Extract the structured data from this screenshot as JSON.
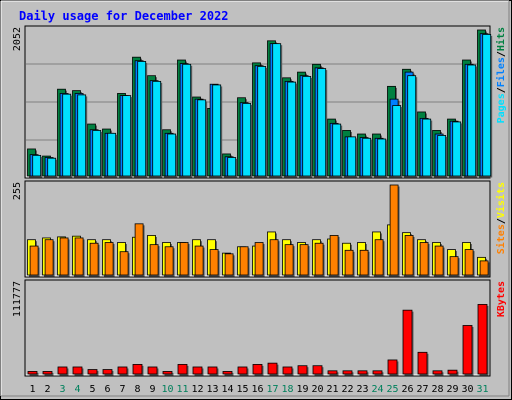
{
  "colors": {
    "background": "#c0c0c0",
    "hits": "#008040",
    "files": "#0080ff",
    "pages": "#00e0ff",
    "visits": "#ffff00",
    "sites": "#ff8000",
    "kbytes": "#ff0000",
    "title": "#0000ff",
    "weekend_day": "#00805c",
    "weekday": "#000000"
  },
  "chart_data": {
    "type": "bar",
    "title": "Daily usage for December 2022",
    "categories": [
      "1",
      "2",
      "3",
      "4",
      "5",
      "6",
      "7",
      "8",
      "9",
      "10",
      "11",
      "12",
      "13",
      "14",
      "15",
      "16",
      "17",
      "18",
      "19",
      "20",
      "21",
      "22",
      "23",
      "24",
      "25",
      "26",
      "27",
      "28",
      "29",
      "30",
      "31"
    ],
    "weekend_days": [
      "3",
      "4",
      "10",
      "11",
      "17",
      "18",
      "24",
      "25",
      "31"
    ],
    "panels": [
      {
        "id": "hits-files-pages",
        "ytick": "2052",
        "ymax": 2052,
        "legend": [
          {
            "label": "Hits",
            "color": "#008040"
          },
          {
            "label": "Files",
            "color": "#0080ff"
          },
          {
            "label": "Pages",
            "color": "#00e0ff"
          }
        ],
        "series": [
          {
            "name": "Hits",
            "color": "#008040",
            "values": [
              380,
              280,
              1220,
              1200,
              730,
              660,
              1160,
              1670,
              1410,
              650,
              1630,
              1110,
              950,
              310,
              1100,
              1590,
              1900,
              1380,
              1460,
              1570,
              800,
              640,
              590,
              590,
              1260,
              1500,
              900,
              640,
              800,
              1630,
              2052
            ]
          },
          {
            "name": "Files",
            "color": "#0080ff",
            "values": [
              300,
              260,
              1160,
              1160,
              650,
              600,
              1130,
              1620,
              1340,
              600,
              1580,
              1080,
              1290,
              270,
              1030,
              1550,
              1860,
              1330,
              1410,
              1520,
              740,
              550,
              540,
              530,
              1080,
              1460,
              810,
              590,
              770,
              1570,
              2000
            ]
          },
          {
            "name": "Pages",
            "color": "#00e0ff",
            "values": [
              290,
              250,
              1150,
              1140,
              640,
              600,
              1130,
              1610,
              1330,
              590,
              1570,
              1070,
              1280,
              260,
              1020,
              1540,
              1860,
              1320,
              1400,
              1510,
              730,
              550,
              530,
              520,
              990,
              1410,
              800,
              570,
              760,
              1560,
              1990
            ]
          }
        ]
      },
      {
        "id": "visits-sites",
        "ytick": "255",
        "ymax": 255,
        "legend": [
          {
            "label": "Visits",
            "color": "#ffff00"
          },
          {
            "label": "Sites",
            "color": "#ff8000"
          }
        ],
        "series": [
          {
            "name": "Visits",
            "color": "#ffff00",
            "values": [
              100,
              105,
              108,
              110,
              100,
              100,
              92,
              107,
              112,
              92,
              92,
              100,
              100,
              62,
              80,
              82,
              122,
              100,
              92,
              100,
              102,
              90,
              92,
              122,
              142,
              120,
              100,
              92,
              72,
              92,
              50
            ]
          },
          {
            "name": "Sites",
            "color": "#ff8000",
            "values": [
              82,
              100,
              105,
              105,
              90,
              92,
              66,
              145,
              86,
              80,
              92,
              82,
              72,
              60,
              80,
              92,
              100,
              86,
              86,
              90,
              112,
              70,
              70,
              100,
              255,
              112,
              92,
              82,
              52,
              72,
              40
            ]
          }
        ]
      },
      {
        "id": "kbytes",
        "ytick": "111777",
        "ymax": 141000,
        "legend": [
          {
            "label": "KBytes",
            "color": "#ff0000"
          }
        ],
        "series": [
          {
            "name": "KBytes",
            "color": "#ff0000",
            "values": [
              4000,
              4000,
              11000,
              11000,
              7000,
              7000,
              11000,
              15000,
              11000,
              4000,
              15000,
              11000,
              11000,
              4000,
              11000,
              15000,
              17000,
              11000,
              13000,
              13000,
              5000,
              5000,
              5000,
              5000,
              22000,
              100000,
              34000,
              5000,
              6000,
              76000,
              109000
            ]
          }
        ]
      }
    ]
  }
}
